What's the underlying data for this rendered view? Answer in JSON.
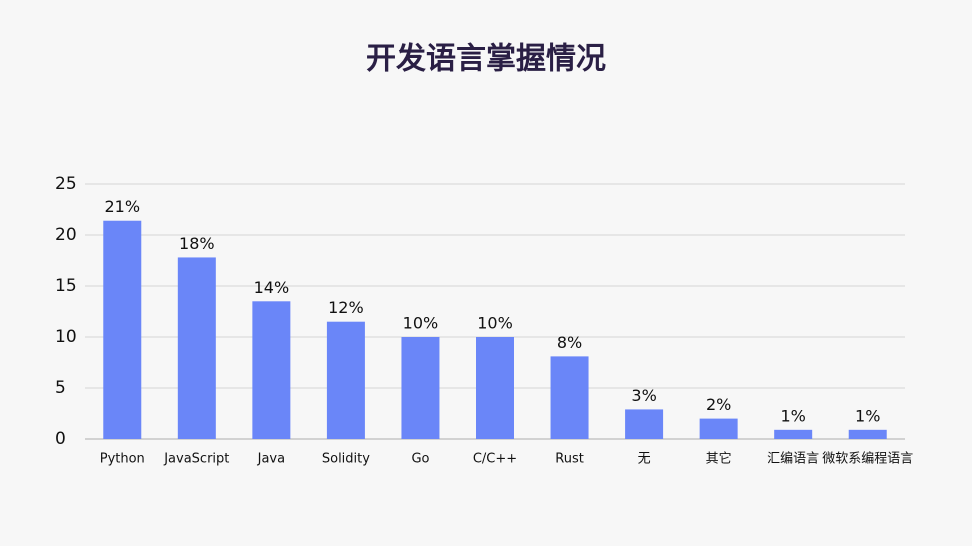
{
  "chart_data": {
    "type": "bar",
    "title": "开发语言掌握情况",
    "categories": [
      "Python",
      "JavaScript",
      "Java",
      "Solidity",
      "Go",
      "C/C++",
      "Rust",
      "无",
      "其它",
      "汇编语言",
      "微软系编程语言"
    ],
    "values": [
      21.4,
      17.8,
      13.5,
      11.5,
      10,
      10,
      8.1,
      2.9,
      2,
      0.9,
      0.9
    ],
    "value_labels": [
      "21%",
      "18%",
      "14%",
      "12%",
      "10%",
      "10%",
      "8%",
      "3%",
      "2%",
      "1%",
      "1%"
    ],
    "color": "#6a86f8",
    "ylim": [
      0,
      25
    ],
    "yticks": [
      0,
      5,
      10,
      15,
      20,
      25
    ],
    "grid": true
  }
}
